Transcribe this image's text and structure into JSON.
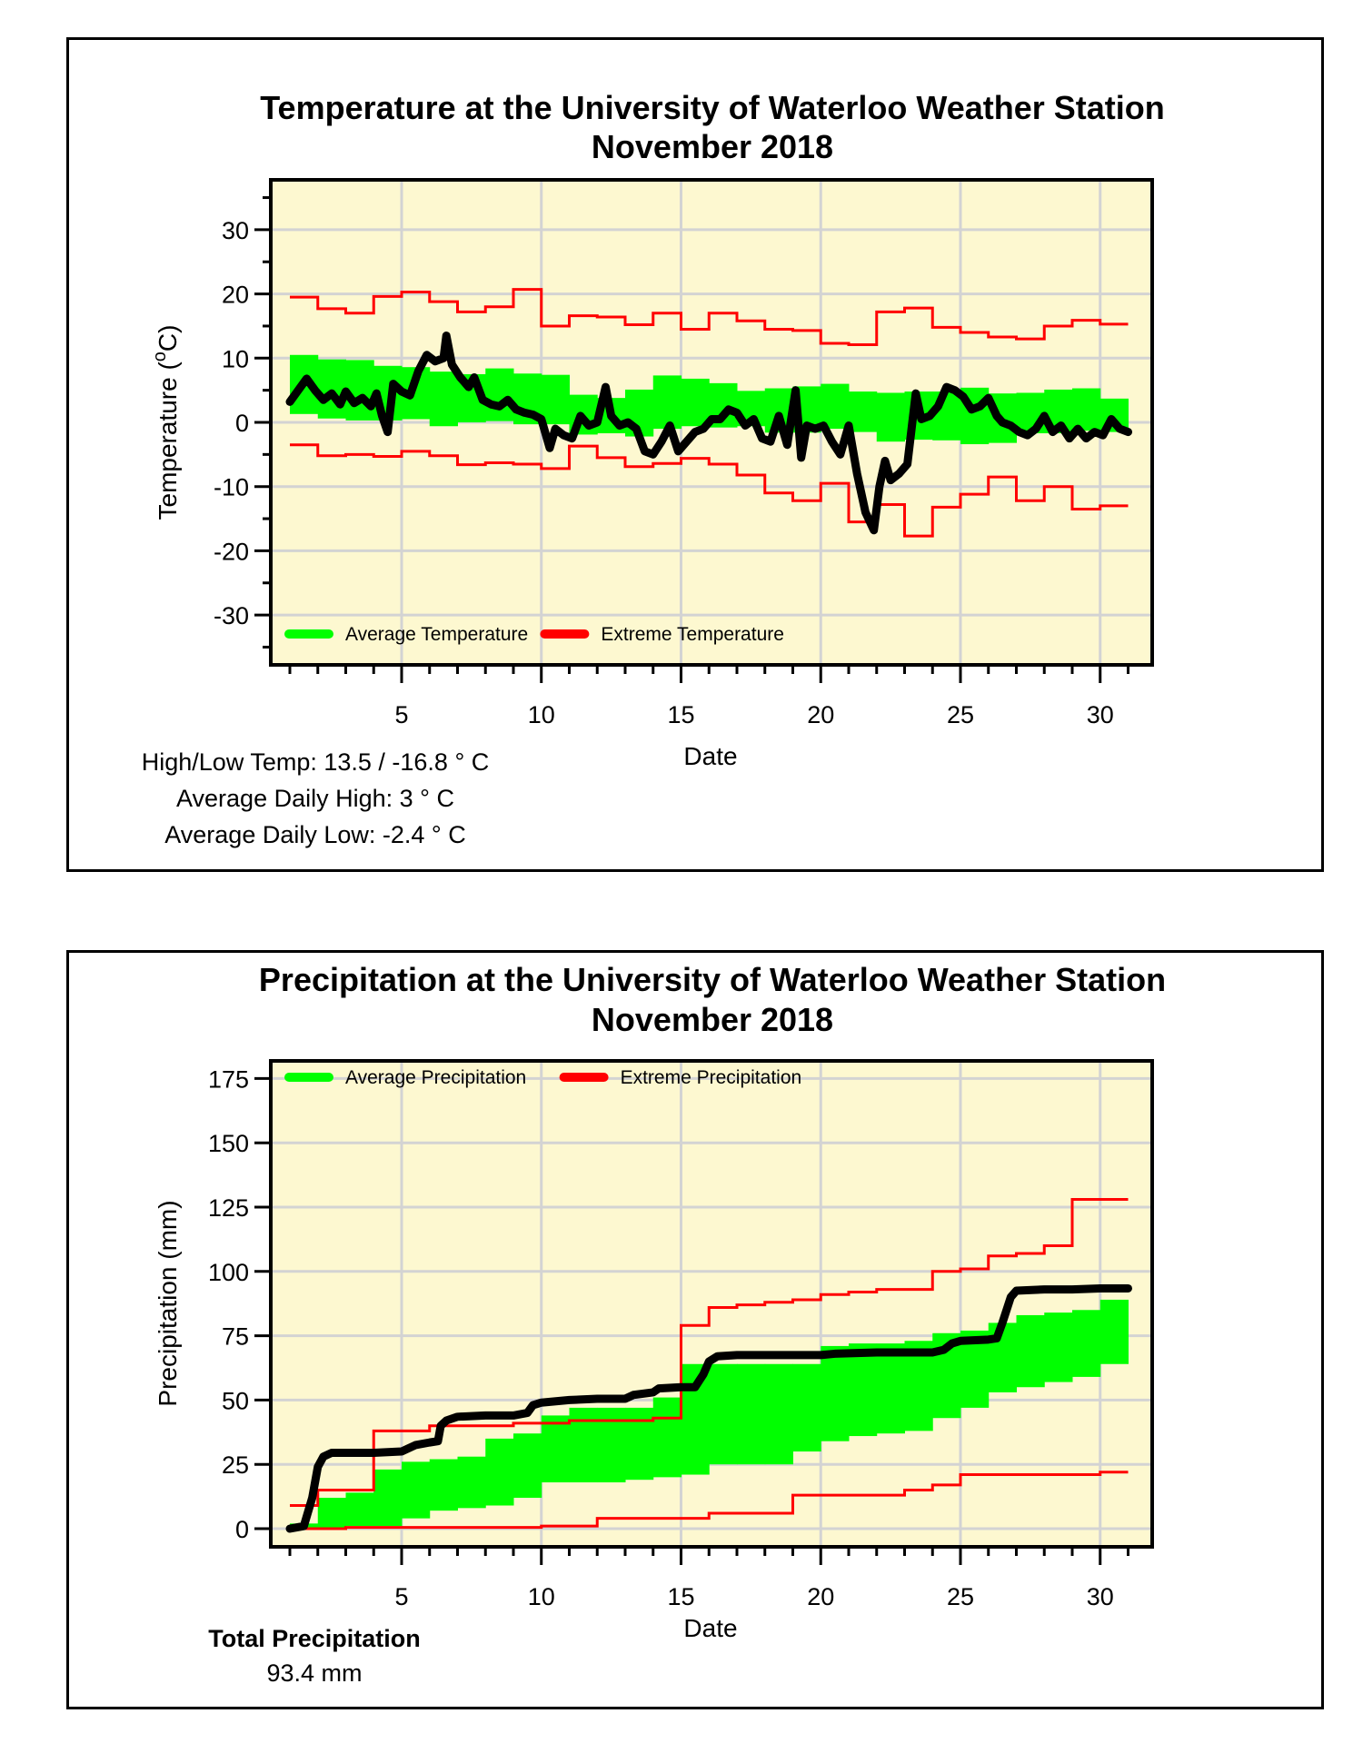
{
  "colors": {
    "plot_background": "#fdf8d0",
    "grid": "#d3d3d3",
    "average": "#00ff00",
    "extreme": "#ff0000",
    "observed": "#000000"
  },
  "chart_data": [
    {
      "type": "area",
      "title": "Temperature at the University of Waterloo Weather Station",
      "subtitle": "November 2018",
      "xlabel": "Date",
      "ylabel": "Temperature ( °C)",
      "ylabel_parts": {
        "text": "Temperature (",
        "sup": "o",
        "unit": "C)"
      },
      "xlim": [
        0.3,
        32.2
      ],
      "ylim": [
        -37.5,
        38
      ],
      "x_ticks": [
        5,
        10,
        15,
        20,
        25,
        30
      ],
      "x_tick_labels": [
        "5",
        "10",
        "15",
        "20",
        "25",
        "30"
      ],
      "y_ticks": [
        -30,
        -20,
        -10,
        0,
        10,
        20,
        30
      ],
      "y_tick_labels": [
        "-30",
        "-20",
        "-10",
        "0",
        "10",
        "20",
        "30"
      ],
      "grid": true,
      "legend": {
        "placement": "bottom-left",
        "entries": [
          {
            "label": "Average Temperature",
            "color": "#00ff00"
          },
          {
            "label": "Extreme Temperature",
            "color": "#ff0000"
          }
        ]
      },
      "days": [
        1,
        2,
        3,
        4,
        5,
        6,
        7,
        8,
        9,
        10,
        11,
        12,
        13,
        14,
        15,
        16,
        17,
        18,
        19,
        20,
        21,
        22,
        23,
        24,
        25,
        26,
        27,
        28,
        29,
        30,
        31
      ],
      "series": [
        {
          "name": "Extreme High",
          "color": "#ff0000",
          "style": "step",
          "values": [
            19.5,
            17.7,
            17.0,
            19.6,
            20.3,
            18.8,
            17.2,
            18.0,
            20.7,
            15.0,
            16.6,
            16.4,
            15.2,
            17.0,
            14.5,
            17.0,
            15.8,
            14.5,
            14.3,
            12.3,
            12.1,
            17.2,
            17.8,
            14.8,
            14.0,
            13.3,
            13.0,
            15.0,
            15.9,
            15.3,
            15.3
          ]
        },
        {
          "name": "Extreme Low",
          "color": "#ff0000",
          "style": "step",
          "values": [
            -3.5,
            -5.2,
            -5.0,
            -5.3,
            -4.5,
            -5.2,
            -6.6,
            -6.3,
            -6.5,
            -7.2,
            -3.7,
            -5.5,
            -6.9,
            -6.4,
            -5.6,
            -6.5,
            -8.2,
            -11.0,
            -12.2,
            -9.5,
            -15.5,
            -12.8,
            -17.7,
            -13.2,
            -11.2,
            -8.5,
            -12.2,
            -10.0,
            -13.5,
            -13.0,
            -13.0
          ]
        },
        {
          "name": "Average High",
          "color": "#00ff00",
          "style": "band-top",
          "values": [
            10.5,
            9.8,
            9.7,
            8.8,
            8.6,
            7.9,
            7.5,
            8.4,
            7.6,
            7.4,
            4.3,
            3.8,
            5.1,
            7.3,
            6.8,
            6.1,
            4.9,
            5.3,
            5.6,
            6.0,
            4.8,
            4.6,
            4.8,
            4.8,
            5.4,
            4.5,
            4.6,
            5.1,
            5.3,
            3.7,
            3.7
          ]
        },
        {
          "name": "Average Low",
          "color": "#00ff00",
          "style": "band-bottom",
          "values": [
            1.3,
            0.6,
            0.3,
            0.3,
            0.5,
            -0.6,
            0.0,
            0.2,
            -0.3,
            -0.3,
            -1.9,
            -1.7,
            -2.2,
            -1.0,
            -0.6,
            -0.8,
            -0.6,
            -1.6,
            -1.6,
            -1.0,
            -1.5,
            -3.0,
            -2.7,
            -2.8,
            -3.4,
            -3.2,
            -1.7,
            -1.7,
            -1.3,
            -1.5,
            -1.5
          ]
        },
        {
          "name": "Observed Temperature",
          "color": "#000000",
          "style": "line",
          "x": [
            1.0,
            1.3,
            1.6,
            1.9,
            2.2,
            2.5,
            2.8,
            3.0,
            3.3,
            3.6,
            3.9,
            4.1,
            4.3,
            4.5,
            4.7,
            5.0,
            5.3,
            5.6,
            5.9,
            6.2,
            6.5,
            6.6,
            6.8,
            7.1,
            7.4,
            7.6,
            7.9,
            8.2,
            8.5,
            8.8,
            9.1,
            9.4,
            9.7,
            10.0,
            10.3,
            10.5,
            10.8,
            11.1,
            11.4,
            11.7,
            12.0,
            12.3,
            12.5,
            12.8,
            13.1,
            13.4,
            13.7,
            14.0,
            14.3,
            14.6,
            14.9,
            15.2,
            15.5,
            15.8,
            16.1,
            16.4,
            16.7,
            17.0,
            17.3,
            17.6,
            17.9,
            18.2,
            18.5,
            18.8,
            19.1,
            19.3,
            19.5,
            19.8,
            20.1,
            20.4,
            20.7,
            21.0,
            21.3,
            21.6,
            21.9,
            22.1,
            22.3,
            22.5,
            22.8,
            23.1,
            23.4,
            23.6,
            23.9,
            24.2,
            24.5,
            24.8,
            25.1,
            25.4,
            25.7,
            26.0,
            26.3,
            26.5,
            26.8,
            27.1,
            27.4,
            27.7,
            28.0,
            28.3,
            28.6,
            28.9,
            29.2,
            29.5,
            29.8,
            30.1,
            30.4,
            30.7,
            31.0
          ],
          "values": [
            3.2,
            5.0,
            6.8,
            5.0,
            3.5,
            4.5,
            2.8,
            4.8,
            3.0,
            3.8,
            2.5,
            4.5,
            1.0,
            -1.5,
            6.0,
            4.8,
            4.2,
            8.0,
            10.5,
            9.5,
            10.0,
            13.5,
            9.0,
            7.0,
            5.5,
            7.0,
            3.5,
            2.8,
            2.5,
            3.5,
            2.0,
            1.5,
            1.2,
            0.5,
            -4.0,
            -1.0,
            -2.0,
            -2.5,
            1.0,
            -0.5,
            0.0,
            5.5,
            1.0,
            -0.5,
            0.0,
            -1.0,
            -4.5,
            -5.0,
            -3.0,
            -0.5,
            -4.5,
            -3.0,
            -1.5,
            -1.0,
            0.5,
            0.5,
            2.0,
            1.5,
            -0.5,
            0.5,
            -2.5,
            -3.0,
            1.0,
            -3.5,
            5.0,
            -5.5,
            -0.5,
            -1.0,
            -0.5,
            -3.0,
            -5.0,
            -0.5,
            -8.0,
            -14.0,
            -16.8,
            -10.0,
            -6.0,
            -9.0,
            -8.0,
            -6.5,
            4.5,
            0.5,
            1.0,
            2.5,
            5.5,
            5.0,
            4.0,
            2.0,
            2.5,
            3.8,
            1.0,
            0.0,
            -0.5,
            -1.5,
            -2.0,
            -1.0,
            1.0,
            -1.5,
            -0.5,
            -2.5,
            -1.0,
            -2.5,
            -1.5,
            -2.0,
            0.5,
            -1.0,
            -1.5
          ]
        }
      ],
      "summary": {
        "high_low_label": "High/Low Temp:  13.5 / -16.8 ° C",
        "avg_high_label": "Average Daily High:  3 ° C",
        "avg_low_label": "Average Daily Low:  -2.4 ° C",
        "high": 13.5,
        "low": -16.8,
        "avg_daily_high": 3,
        "avg_daily_low": -2.4
      }
    },
    {
      "type": "area",
      "title": "Precipitation at the University of Waterloo Weather Station",
      "subtitle": "November 2018",
      "xlabel": "Date",
      "ylabel": "Precipitation (mm)",
      "xlim": [
        0.3,
        32.2
      ],
      "ylim": [
        -7,
        180
      ],
      "x_ticks": [
        5,
        10,
        15,
        20,
        25,
        30
      ],
      "x_tick_labels": [
        "5",
        "10",
        "15",
        "20",
        "25",
        "30"
      ],
      "y_ticks": [
        0,
        25,
        50,
        75,
        100,
        125,
        150,
        175
      ],
      "y_tick_labels": [
        "0",
        "25",
        "50",
        "75",
        "100",
        "125",
        "150",
        "175"
      ],
      "grid": true,
      "legend": {
        "placement": "top-left",
        "entries": [
          {
            "label": "Average Precipitation",
            "color": "#00ff00"
          },
          {
            "label": "Extreme Precipitation",
            "color": "#ff0000"
          }
        ]
      },
      "days": [
        1,
        2,
        3,
        4,
        5,
        6,
        7,
        8,
        9,
        10,
        11,
        12,
        13,
        14,
        15,
        16,
        17,
        18,
        19,
        20,
        21,
        22,
        23,
        24,
        25,
        26,
        27,
        28,
        29,
        30,
        31
      ],
      "series": [
        {
          "name": "Extreme High",
          "color": "#ff0000",
          "style": "step",
          "values": [
            9,
            15,
            15,
            38,
            38,
            40,
            40,
            40,
            41,
            41,
            42,
            42,
            42,
            43,
            79,
            86,
            87,
            88,
            89,
            91,
            92,
            93,
            93,
            100,
            101,
            106,
            107,
            110,
            128,
            128,
            128
          ]
        },
        {
          "name": "Extreme Low",
          "color": "#ff0000",
          "style": "step",
          "values": [
            0,
            0,
            0.5,
            0.5,
            0.5,
            0.5,
            0.5,
            0.5,
            0.5,
            1,
            1,
            4,
            4,
            4,
            4,
            6,
            6,
            6,
            13,
            13,
            13,
            13,
            15,
            17,
            21,
            21,
            21,
            21,
            21,
            22,
            22
          ]
        },
        {
          "name": "Average High",
          "color": "#00ff00",
          "style": "band-top",
          "values": [
            2,
            12,
            14,
            23,
            26,
            27,
            28,
            35,
            37,
            44,
            47,
            47,
            47,
            51,
            64,
            64,
            64,
            64,
            64,
            71,
            72,
            72,
            73,
            76,
            77,
            80,
            83,
            84,
            85,
            89,
            89
          ]
        },
        {
          "name": "Average Low",
          "color": "#00ff00",
          "style": "band-bottom",
          "values": [
            0,
            0,
            1,
            1,
            4,
            7,
            8,
            9,
            12,
            18,
            18,
            18,
            19,
            20,
            21,
            25,
            25,
            25,
            30,
            34,
            36,
            37,
            38,
            43,
            47,
            53,
            55,
            57,
            59,
            64,
            64
          ]
        },
        {
          "name": "Observed Precipitation",
          "color": "#000000",
          "style": "line",
          "x": [
            1.0,
            1.5,
            1.8,
            2.0,
            2.2,
            2.5,
            3.0,
            4.0,
            5.0,
            5.2,
            5.5,
            6.0,
            6.3,
            6.4,
            6.6,
            7.0,
            8.0,
            9.0,
            9.5,
            9.7,
            10.0,
            11.0,
            12.0,
            13.0,
            13.3,
            14.0,
            14.2,
            15.0,
            15.5,
            15.8,
            16.0,
            16.3,
            17.0,
            18.0,
            19.0,
            20.0,
            20.5,
            22.0,
            24.0,
            24.4,
            24.7,
            25.0,
            26.0,
            26.3,
            26.5,
            26.8,
            27.0,
            28.0,
            29.0,
            30.0,
            31.0
          ],
          "values": [
            0,
            1,
            12,
            24,
            28,
            29.5,
            29.5,
            29.5,
            30,
            31,
            32.5,
            33.5,
            34,
            40,
            42,
            43.5,
            44,
            44,
            45,
            48,
            49,
            50,
            50.5,
            50.5,
            52,
            53,
            54.5,
            55,
            55,
            60,
            65,
            67,
            67.5,
            67.5,
            67.5,
            67.5,
            68,
            68.5,
            68.5,
            69.5,
            72,
            73,
            73.5,
            74,
            80,
            90,
            92.5,
            93,
            93,
            93.4,
            93.4
          ]
        }
      ],
      "summary": {
        "total_label": "Total Precipitation",
        "total_value_label": "93.4 mm",
        "total": 93.4
      }
    }
  ]
}
